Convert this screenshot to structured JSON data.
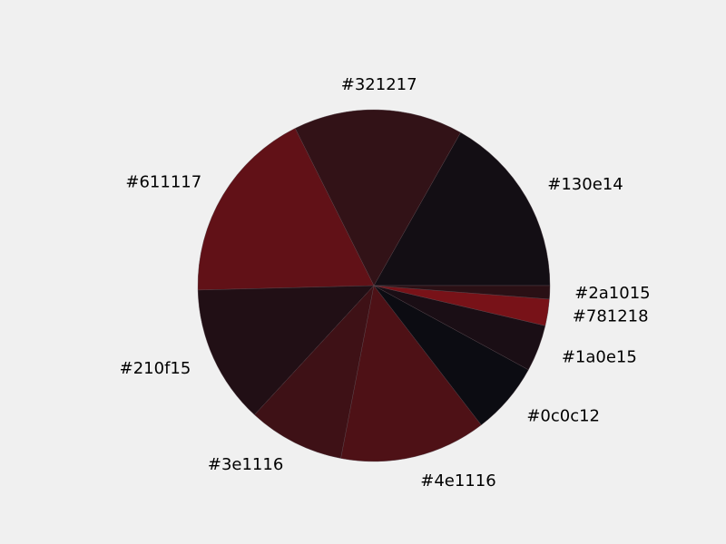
{
  "chart_data": {
    "type": "pie",
    "title": "",
    "background": "#f0f0f0",
    "start_angle_deg": 0,
    "direction": "counterclockwise",
    "slices": [
      {
        "label": "#130e14",
        "color": "#130e14",
        "value": 16.5
      },
      {
        "label": "#321217",
        "color": "#321217",
        "value": 15.3
      },
      {
        "label": "#611117",
        "color": "#611117",
        "value": 17.7
      },
      {
        "label": "#210f15",
        "color": "#210f15",
        "value": 12.5
      },
      {
        "label": "#3e1116",
        "color": "#3e1116",
        "value": 8.7
      },
      {
        "label": "#4e1116",
        "color": "#4e1116",
        "value": 13.2
      },
      {
        "label": "#0c0c12",
        "color": "#0c0c12",
        "value": 6.5
      },
      {
        "label": "#1a0e15",
        "color": "#1a0e15",
        "value": 4.2
      },
      {
        "label": "#781218",
        "color": "#781218",
        "value": 2.4
      },
      {
        "label": "#2a1015",
        "color": "#2a1015",
        "value": 1.2
      }
    ]
  }
}
